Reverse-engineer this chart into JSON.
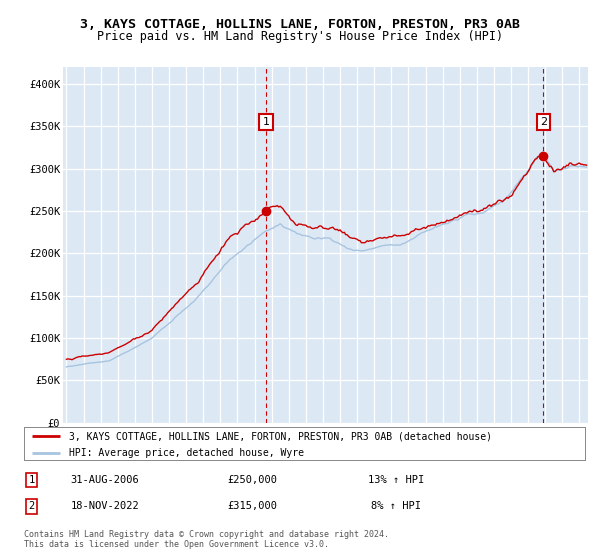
{
  "title_line1": "3, KAYS COTTAGE, HOLLINS LANE, FORTON, PRESTON, PR3 0AB",
  "title_line2": "Price paid vs. HM Land Registry's House Price Index (HPI)",
  "legend_line1": "3, KAYS COTTAGE, HOLLINS LANE, FORTON, PRESTON, PR3 0AB (detached house)",
  "legend_line2": "HPI: Average price, detached house, Wyre",
  "annotation1_label": "1",
  "annotation1_date": "31-AUG-2006",
  "annotation1_price": "£250,000",
  "annotation1_hpi": "13% ↑ HPI",
  "annotation2_label": "2",
  "annotation2_date": "18-NOV-2022",
  "annotation2_price": "£315,000",
  "annotation2_hpi": "8% ↑ HPI",
  "footer": "Contains HM Land Registry data © Crown copyright and database right 2024.\nThis data is licensed under the Open Government Licence v3.0.",
  "background_color": "#dce9f5",
  "red_color": "#cc0000",
  "blue_color": "#a8c4e0",
  "marker1_x": 2006.667,
  "marker1_y": 250000,
  "marker2_x": 2022.88,
  "marker2_y": 315000,
  "ylim": [
    0,
    420000
  ],
  "xlim_start": 1994.8,
  "xlim_end": 2025.5,
  "yticks": [
    0,
    50000,
    100000,
    150000,
    200000,
    250000,
    300000,
    350000,
    400000
  ],
  "ytick_labels": [
    "£0",
    "£50K",
    "£100K",
    "£150K",
    "£200K",
    "£250K",
    "£300K",
    "£350K",
    "£400K"
  ],
  "xticks": [
    1995,
    1996,
    1997,
    1998,
    1999,
    2000,
    2001,
    2002,
    2003,
    2004,
    2005,
    2006,
    2007,
    2008,
    2009,
    2010,
    2011,
    2012,
    2013,
    2014,
    2015,
    2016,
    2017,
    2018,
    2019,
    2020,
    2021,
    2022,
    2023,
    2024,
    2025
  ]
}
